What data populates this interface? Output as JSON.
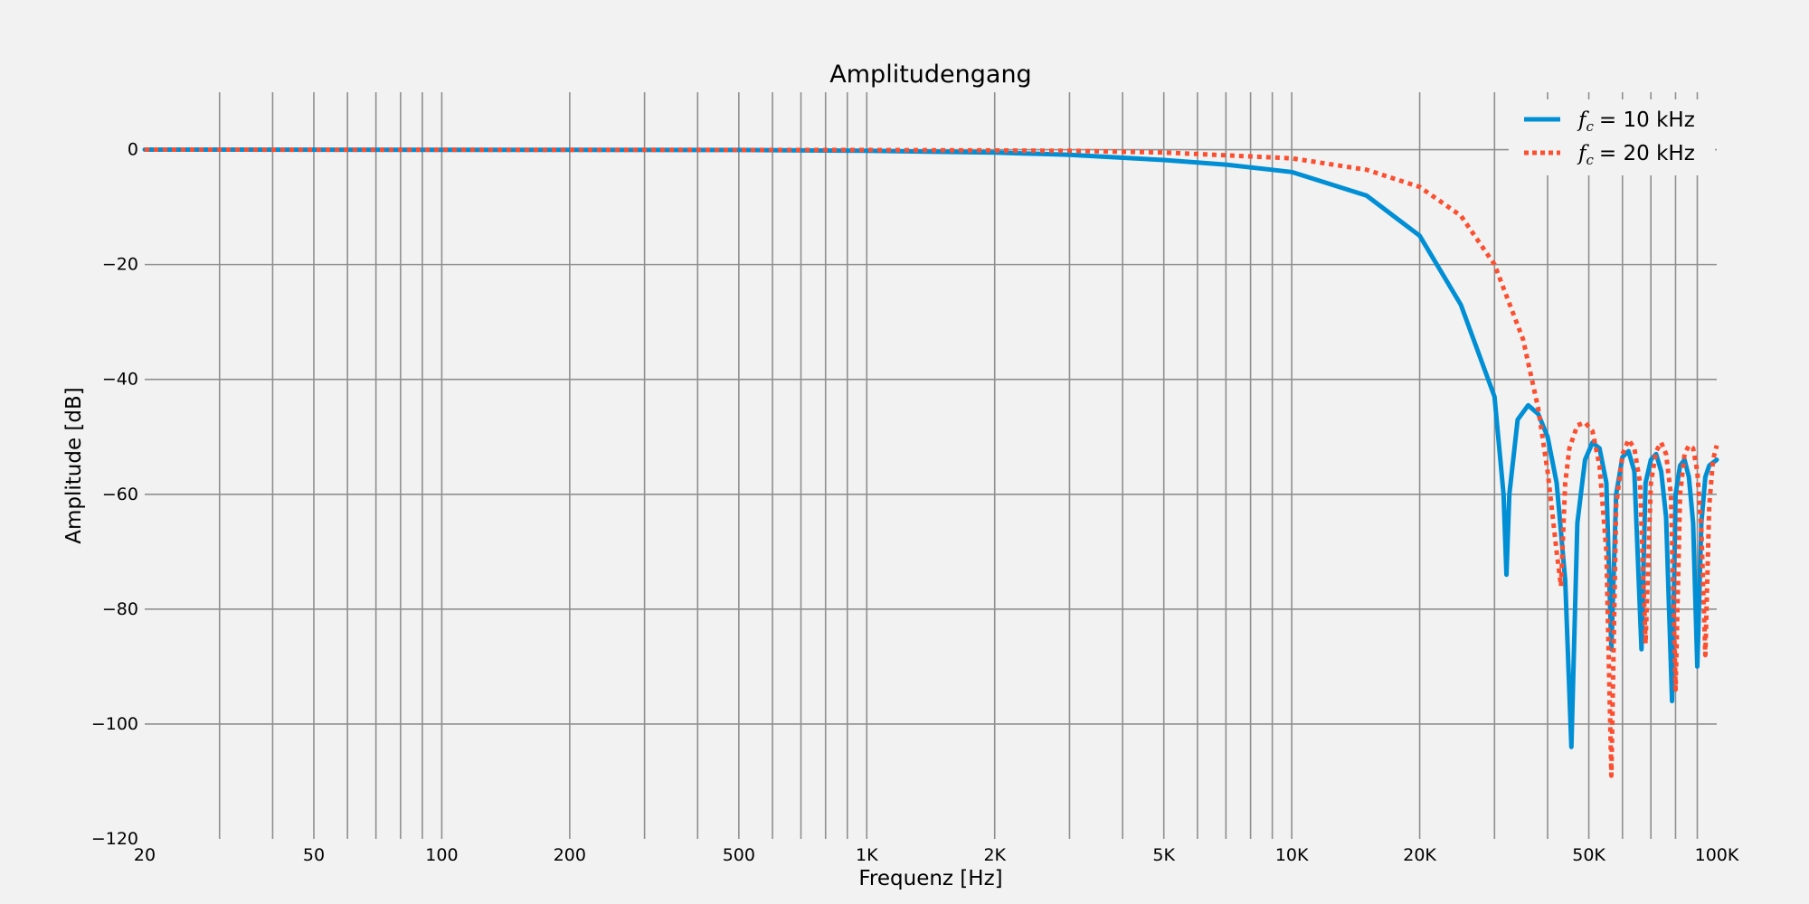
{
  "chart_data": {
    "type": "line",
    "title": "Amplitudengang",
    "xlabel": "Frequenz [Hz]",
    "ylabel": "Amplitude [dB]",
    "x_scale": "log",
    "xlim": [
      20,
      100000
    ],
    "ylim": [
      -120,
      10
    ],
    "x_ticks": [
      20,
      50,
      100,
      200,
      500,
      1000,
      2000,
      5000,
      10000,
      20000,
      50000,
      100000
    ],
    "x_tick_labels": [
      "20",
      "50",
      "100",
      "200",
      "500",
      "1K",
      "2K",
      "5K",
      "10K",
      "20K",
      "50K",
      "100K"
    ],
    "y_ticks": [
      0,
      -20,
      -40,
      -60,
      -80,
      -100,
      -120
    ],
    "y_tick_labels": [
      "0",
      "−20",
      "−40",
      "−60",
      "−80",
      "−100",
      "−120"
    ],
    "grid": true,
    "legend_position": "top-right",
    "series": [
      {
        "name": "= 10 kHz",
        "legend_symbol": "f",
        "legend_subscript": "c",
        "color": "#008fd5",
        "style": "solid",
        "x": [
          20,
          500,
          1000,
          2000,
          3000,
          5000,
          7000,
          10000,
          15000,
          20000,
          25000,
          30000,
          31500,
          32000,
          32500,
          34000,
          36000,
          38000,
          40000,
          42000,
          44000,
          45500,
          47000,
          49000,
          51000,
          53000,
          55000,
          56500,
          58000,
          60000,
          62000,
          64000,
          66500,
          68000,
          70000,
          72000,
          74000,
          76000,
          78500,
          80000,
          82000,
          84000,
          86000,
          88000,
          90000,
          92000,
          94000,
          96000,
          100000
        ],
        "y": [
          0,
          -0.05,
          -0.2,
          -0.5,
          -0.9,
          -1.8,
          -2.6,
          -3.9,
          -8,
          -15,
          -27,
          -43,
          -60,
          -74,
          -60,
          -47,
          -44.5,
          -46,
          -50,
          -58,
          -75,
          -104,
          -65,
          -54,
          -51,
          -52,
          -58,
          -87,
          -60,
          -53.5,
          -52.5,
          -56,
          -87,
          -58,
          -54,
          -53,
          -56,
          -64,
          -96,
          -60,
          -55,
          -54,
          -57,
          -65,
          -90,
          -65,
          -57,
          -55,
          -54
        ]
      },
      {
        "name": "= 20 kHz",
        "legend_symbol": "f",
        "legend_subscript": "c",
        "color": "#fc4f30",
        "style": "dotted",
        "x": [
          20,
          1000,
          3000,
          5000,
          10000,
          15000,
          20000,
          25000,
          30000,
          35000,
          38000,
          40000,
          42000,
          43000,
          44000,
          45000,
          47000,
          49000,
          51000,
          53000,
          55000,
          56500,
          58000,
          60000,
          62000,
          64000,
          66000,
          68000,
          70000,
          72000,
          74000,
          76000,
          78000,
          80000,
          82000,
          84000,
          86000,
          88000,
          90000,
          92000,
          94000,
          96000,
          98000,
          100000
        ],
        "y": [
          0,
          -0.05,
          -0.2,
          -0.5,
          -1.5,
          -3.5,
          -6.5,
          -11.5,
          -20,
          -33,
          -45,
          -56,
          -70,
          -76,
          -58,
          -52,
          -48,
          -47.5,
          -49,
          -55,
          -70,
          -109,
          -62,
          -53,
          -50.5,
          -52,
          -58,
          -86,
          -58,
          -52.5,
          -51,
          -53,
          -60,
          -94,
          -60,
          -53,
          -51.5,
          -52,
          -56,
          -66,
          -88,
          -62,
          -54,
          -51.5
        ]
      }
    ]
  }
}
